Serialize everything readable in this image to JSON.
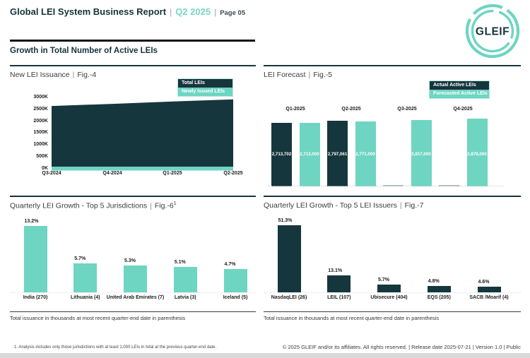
{
  "page": {
    "header": {
      "title": "Global LEI System Business Report",
      "separator": "|",
      "period": "Q2 2025",
      "page_label": "Page 05"
    },
    "logo": {
      "text": "GLEIF"
    },
    "section_title": "Growth in Total Number of Active LEIs",
    "footnote": "1. Analysis includes only those jurisdictions with at least 1,000 LEIs in total at the previous quarter-end date.",
    "copyright": "© 2025 GLEIF and/or its affiliates. All rights reserved. | Release date 2025-07-21 | Version 1.0 | Public"
  },
  "colors": {
    "dark": "#16363d",
    "teal": "#6ed5c2",
    "placeholder_gray": "#a9bcc4",
    "header_teal": "#79d7c5"
  },
  "chart_data": [
    {
      "id": "fig4",
      "type": "area",
      "title": "New LEI Issuance",
      "fig_label": "Fig.-4",
      "x": [
        "Q3-2024",
        "Q4-2024",
        "Q1-2025",
        "Q2-2025"
      ],
      "series": [
        {
          "name": "Total LEIs",
          "color_key": "dark",
          "values": [
            2640000,
            2730000,
            2830000,
            2920000
          ]
        },
        {
          "name": "Newly Issued LEIs",
          "color_key": "teal",
          "values": [
            90000,
            90000,
            90000,
            90000
          ]
        }
      ],
      "ylim": [
        0,
        3000000
      ],
      "yticks": [
        "3000K",
        "2500K",
        "2000K",
        "1500K",
        "1000K",
        "500K",
        "0K"
      ],
      "legend_position": "top-right",
      "grid": false
    },
    {
      "id": "fig5",
      "type": "bar",
      "title": "LEI Forecast",
      "fig_label": "Fig.-5",
      "categories": [
        "Q1-2025",
        "Q2-2025",
        "Q3-2025",
        "Q4-2025"
      ],
      "series": [
        {
          "name": "Actual Active LEIs",
          "color_key": "dark",
          "values": [
            2713702,
            2797061,
            null,
            null
          ]
        },
        {
          "name": "Forecasted Active LEIs",
          "color_key": "teal",
          "values": [
            2713000,
            2771000,
            2817000,
            2878000
          ]
        }
      ],
      "ylim": [
        0,
        2878000
      ],
      "legend_position": "top-right",
      "data_labels": true,
      "grid": false
    },
    {
      "id": "fig6",
      "type": "bar",
      "title": "Quarterly LEI Growth - Top 5 Jurisdictions",
      "fig_label": "Fig.-6",
      "fig_superscript": "1",
      "categories": [
        "India (270)",
        "Lithuania (4)",
        "United Arab Emirates (7)",
        "Latvia (3)",
        "Iceland (5)"
      ],
      "values": [
        13.2,
        5.7,
        5.3,
        5.1,
        4.7
      ],
      "value_suffix": "%",
      "bar_color_key": "teal",
      "ylim": [
        0,
        13.2
      ],
      "note": "Total issuance in thousands at most recent quarter-end date in parenthesis",
      "grid": false
    },
    {
      "id": "fig7",
      "type": "bar",
      "title": "Quarterly LEI Growth - Top 5 LEI Issuers",
      "fig_label": "Fig.-7",
      "categories": [
        "NasdaqLEI (26)",
        "LEIL (107)",
        "Ubisecure (404)",
        "EQS (205)",
        "SACB /Moarif (4)"
      ],
      "values": [
        51.3,
        13.1,
        5.7,
        4.8,
        4.6
      ],
      "value_suffix": "%",
      "bar_color_key": "dark",
      "ylim": [
        0,
        51.3
      ],
      "note": "Total issuance in thousands at most recent quarter-end date in parenthesis",
      "grid": false
    }
  ]
}
